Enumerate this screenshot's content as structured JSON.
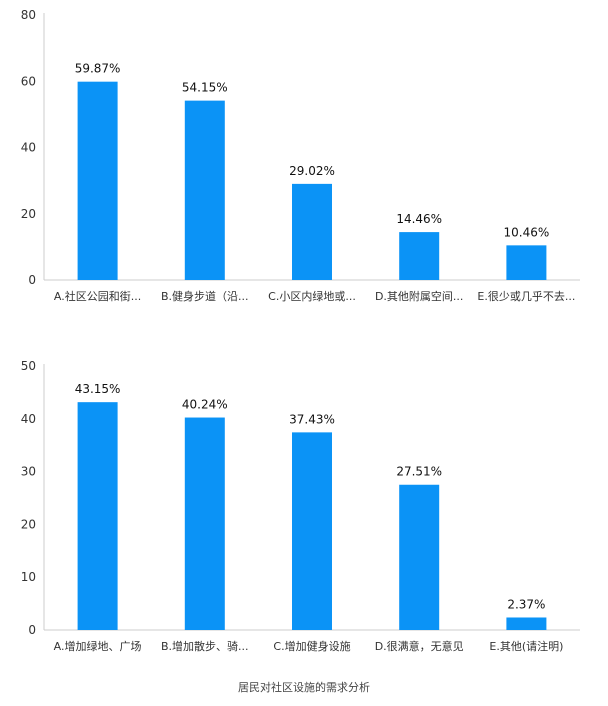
{
  "chart_data": [
    {
      "type": "bar",
      "categories": [
        "A.社区公园和街...",
        "B.健身步道（沿...",
        "C.小区内绿地或...",
        "D.其他附属空间...",
        "E.很少或几乎不去..."
      ],
      "values": [
        59.87,
        54.15,
        29.02,
        14.46,
        10.46
      ],
      "data_labels": [
        "59.87%",
        "54.15%",
        "29.02%",
        "14.46%",
        "10.46%"
      ],
      "yticks": [
        "0",
        "20",
        "40",
        "60",
        "80"
      ],
      "ylim": [
        0,
        80
      ],
      "bar_color": "#0b93f6",
      "grid": false
    },
    {
      "type": "bar",
      "categories": [
        "A.增加绿地、广场",
        "B.增加散步、骑...",
        "C.增加健身设施",
        "D.很满意，无意见",
        "E.其他(请注明)"
      ],
      "values": [
        43.15,
        40.24,
        37.43,
        27.51,
        2.37
      ],
      "data_labels": [
        "43.15%",
        "40.24%",
        "37.43%",
        "27.51%",
        "2.37%"
      ],
      "yticks": [
        "0",
        "10",
        "20",
        "30",
        "40",
        "50"
      ],
      "ylim": [
        0,
        50
      ],
      "bar_color": "#0b93f6",
      "grid": false
    }
  ],
  "caption": "居民对社区设施的需求分析"
}
